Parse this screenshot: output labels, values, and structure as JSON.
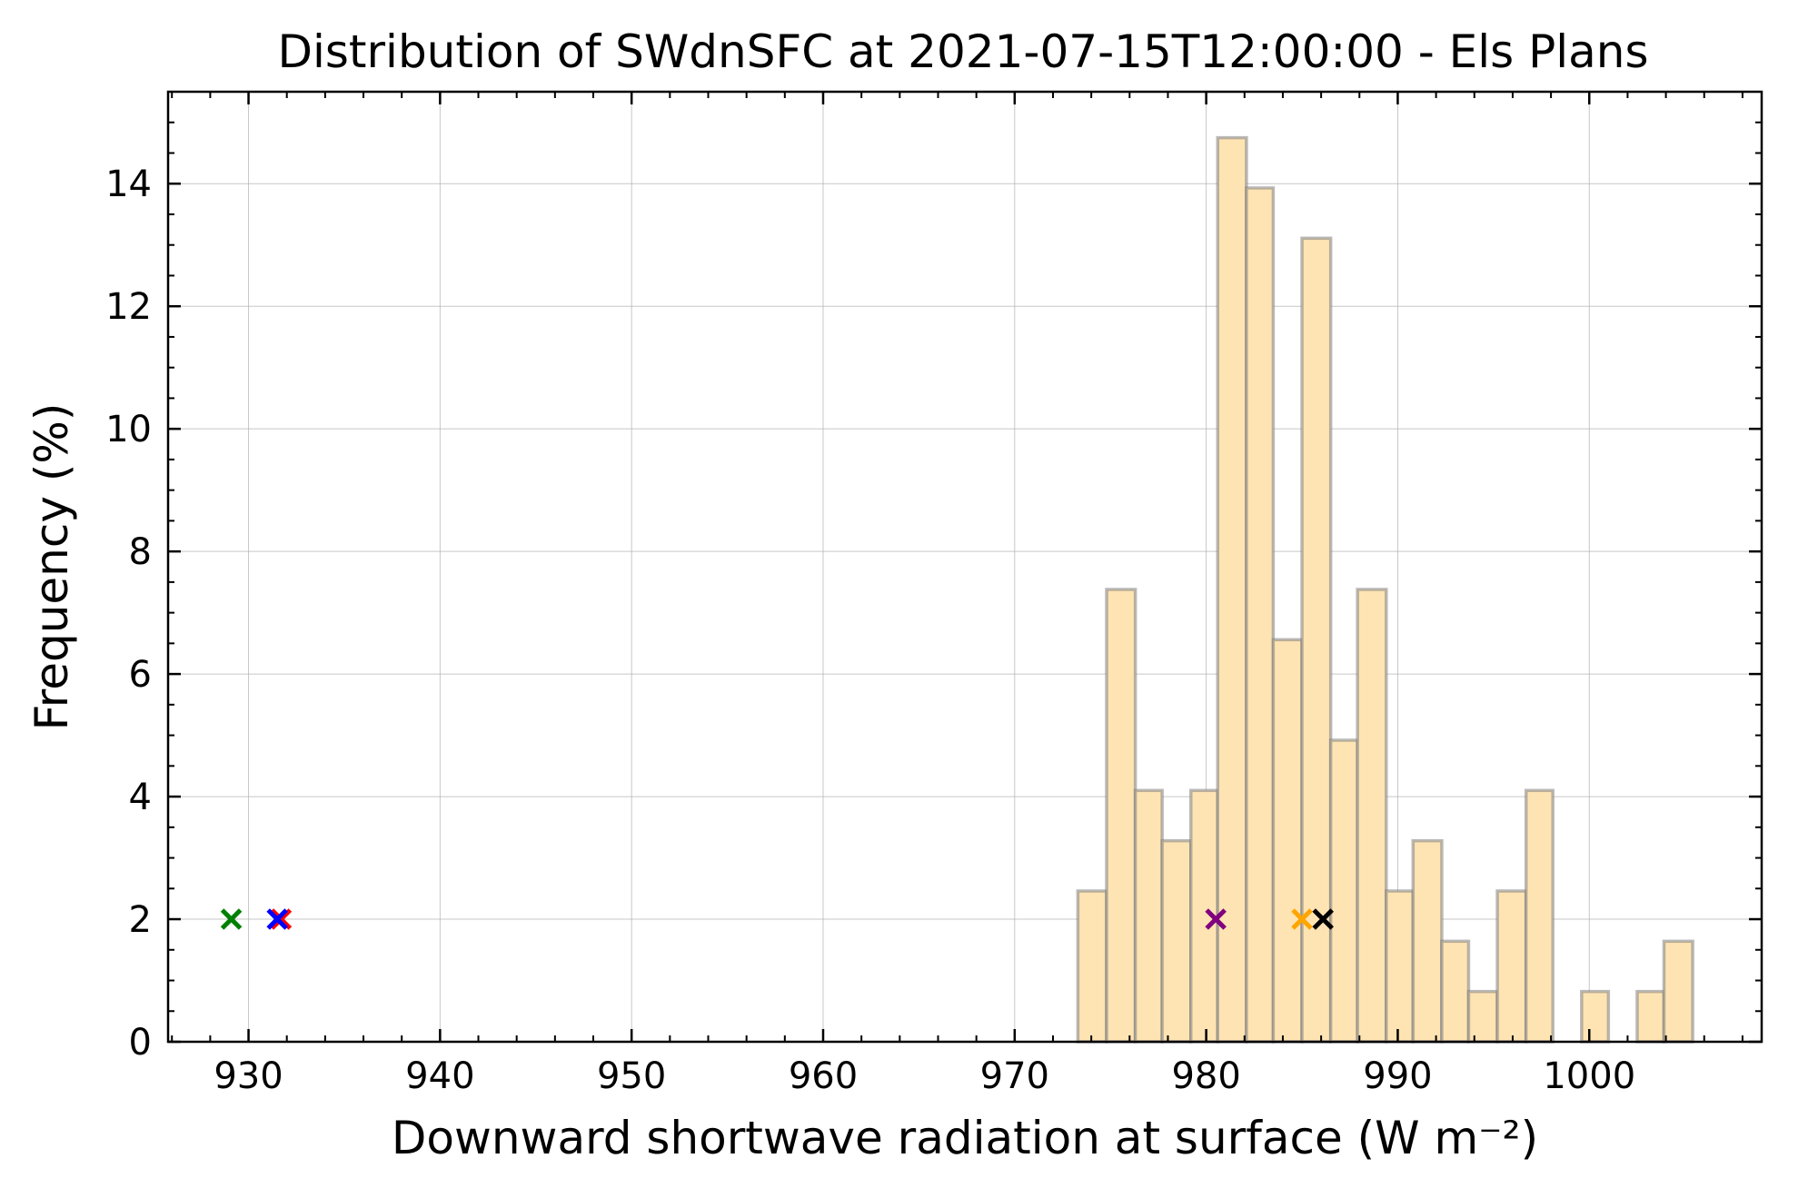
{
  "chart_data": {
    "type": "bar",
    "title": "Distribution of SWdnSFC at 2021-07-15T12:00:00 - Els Plans",
    "xlabel": "Downward shortwave radiation at surface (W m⁻²)",
    "ylabel": "Frequency (%)",
    "xlim": [
      925.8,
      1009.0
    ],
    "ylim": [
      0,
      15.5
    ],
    "xticks": [
      930,
      940,
      950,
      960,
      970,
      980,
      990,
      1000
    ],
    "yticks": [
      0,
      2,
      4,
      6,
      8,
      10,
      12,
      14
    ],
    "grid": true,
    "bar_color": "#ffe4b3",
    "bar_edge_color": "#8c8c8c",
    "bins": [
      {
        "x0": 973.3,
        "x1": 974.8,
        "value": 2.46
      },
      {
        "x0": 974.8,
        "x1": 976.3,
        "value": 7.38
      },
      {
        "x0": 976.3,
        "x1": 977.7,
        "value": 4.1
      },
      {
        "x0": 977.7,
        "x1": 979.2,
        "value": 3.28
      },
      {
        "x0": 979.2,
        "x1": 980.6,
        "value": 4.1
      },
      {
        "x0": 980.6,
        "x1": 982.1,
        "value": 14.75
      },
      {
        "x0": 982.1,
        "x1": 983.5,
        "value": 13.93
      },
      {
        "x0": 983.5,
        "x1": 985.0,
        "value": 6.56
      },
      {
        "x0": 985.0,
        "x1": 986.5,
        "value": 13.11
      },
      {
        "x0": 986.5,
        "x1": 987.9,
        "value": 4.92
      },
      {
        "x0": 987.9,
        "x1": 989.4,
        "value": 7.38
      },
      {
        "x0": 989.4,
        "x1": 990.8,
        "value": 2.46
      },
      {
        "x0": 990.8,
        "x1": 992.3,
        "value": 3.28
      },
      {
        "x0": 992.3,
        "x1": 993.7,
        "value": 1.64
      },
      {
        "x0": 993.7,
        "x1": 995.2,
        "value": 0.82
      },
      {
        "x0": 995.2,
        "x1": 996.7,
        "value": 2.46
      },
      {
        "x0": 996.7,
        "x1": 998.1,
        "value": 4.1
      },
      {
        "x0": 999.6,
        "x1": 1001.0,
        "value": 0.82
      },
      {
        "x0": 1002.5,
        "x1": 1003.9,
        "value": 0.82
      },
      {
        "x0": 1003.9,
        "x1": 1005.4,
        "value": 1.64
      }
    ],
    "markers": [
      {
        "x": 929.1,
        "y": 2,
        "color": "#008000"
      },
      {
        "x": 931.7,
        "y": 2,
        "color": "#ff0000"
      },
      {
        "x": 931.5,
        "y": 2,
        "color": "#0000ff"
      },
      {
        "x": 980.5,
        "y": 2,
        "color": "#800080"
      },
      {
        "x": 985.0,
        "y": 2,
        "color": "#ffa500"
      },
      {
        "x": 986.1,
        "y": 2,
        "color": "#000000"
      }
    ]
  }
}
